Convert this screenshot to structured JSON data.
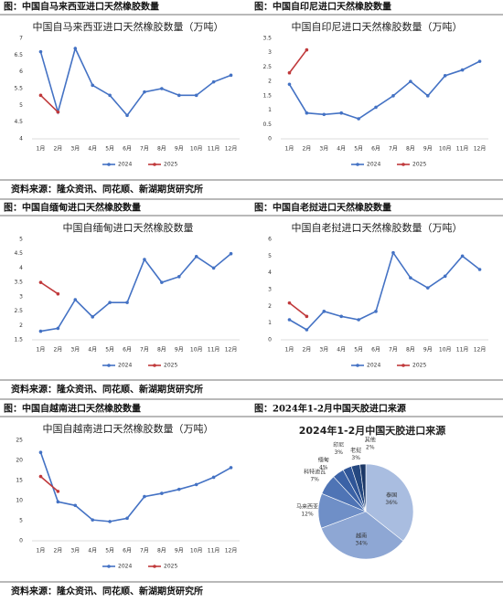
{
  "headers": [
    "图：中国自马来西亚进口天然橡胶数量",
    "图：中国自印尼进口天然橡胶数量",
    "图：中国自缅甸进口天然橡胶数量",
    "图：中国自老挝进口天然橡胶数量",
    "图：中国自越南进口天然橡胶数量",
    "图：2024年1-2月中国天胶进口来源"
  ],
  "sources": [
    "资料来源：隆众资讯、同花顺、新湖期货研究所",
    "资料来源：隆众资讯、同花顺、新湖期货研究所",
    "资料来源：隆众资讯、同花顺、新湖期货研究所"
  ],
  "chart_data": [
    {
      "type": "line",
      "title": "中国自马来西亚进口天然橡胶数量（万吨）",
      "categories": [
        "1月",
        "2月",
        "3月",
        "4月",
        "5月",
        "6月",
        "7月",
        "8月",
        "9月",
        "10月",
        "11月",
        "12月"
      ],
      "series": [
        {
          "name": "2024",
          "color": "#4472c4",
          "values": [
            6.6,
            4.8,
            6.7,
            5.6,
            5.3,
            4.7,
            5.4,
            5.5,
            5.3,
            5.3,
            5.7,
            5.9
          ]
        },
        {
          "name": "2025",
          "color": "#c0393b",
          "values": [
            5.3,
            4.8,
            null,
            null,
            null,
            null,
            null,
            null,
            null,
            null,
            null,
            null
          ]
        }
      ],
      "ylim": [
        4,
        7
      ],
      "yticks": [
        4,
        4.5,
        5,
        5.5,
        6,
        6.5,
        7
      ]
    },
    {
      "type": "line",
      "title": "中国自印尼进口天然橡胶数量（万吨）",
      "categories": [
        "1月",
        "2月",
        "3月",
        "4月",
        "5月",
        "6月",
        "7月",
        "8月",
        "9月",
        "10月",
        "11月",
        "12月"
      ],
      "series": [
        {
          "name": "2024",
          "color": "#4472c4",
          "values": [
            1.9,
            0.9,
            0.85,
            0.9,
            0.7,
            1.1,
            1.5,
            2.0,
            1.5,
            2.2,
            2.4,
            2.7
          ]
        },
        {
          "name": "2025",
          "color": "#c0393b",
          "values": [
            2.3,
            3.1,
            null,
            null,
            null,
            null,
            null,
            null,
            null,
            null,
            null,
            null
          ]
        }
      ],
      "ylim": [
        0,
        3.5
      ],
      "yticks": [
        0,
        0.5,
        1,
        1.5,
        2,
        2.5,
        3,
        3.5
      ]
    },
    {
      "type": "line",
      "title": "中国自缅甸进口天然橡胶数量",
      "categories": [
        "1月",
        "2月",
        "3月",
        "4月",
        "5月",
        "6月",
        "7月",
        "8月",
        "9月",
        "10月",
        "11月",
        "12月"
      ],
      "series": [
        {
          "name": "2024",
          "color": "#4472c4",
          "values": [
            1.8,
            1.9,
            2.9,
            2.3,
            2.8,
            2.8,
            4.3,
            3.5,
            3.7,
            4.4,
            4.0,
            4.5
          ]
        },
        {
          "name": "2025",
          "color": "#c0393b",
          "values": [
            3.5,
            3.1,
            null,
            null,
            null,
            null,
            null,
            null,
            null,
            null,
            null,
            null
          ]
        }
      ],
      "ylim": [
        1.5,
        5
      ],
      "yticks": [
        1.5,
        2,
        2.5,
        3,
        3.5,
        4,
        4.5,
        5
      ]
    },
    {
      "type": "line",
      "title": "中国自老挝进口天然橡胶数量（万吨）",
      "categories": [
        "1月",
        "2月",
        "3月",
        "4月",
        "5月",
        "6月",
        "7月",
        "8月",
        "9月",
        "10月",
        "11月",
        "12月"
      ],
      "series": [
        {
          "name": "2024",
          "color": "#4472c4",
          "values": [
            1.2,
            0.6,
            1.7,
            1.4,
            1.2,
            1.7,
            5.2,
            3.7,
            3.1,
            3.8,
            5.0,
            4.2
          ]
        },
        {
          "name": "2025",
          "color": "#c0393b",
          "values": [
            2.2,
            1.4,
            null,
            null,
            null,
            null,
            null,
            null,
            null,
            null,
            null,
            null
          ]
        }
      ],
      "ylim": [
        0,
        6
      ],
      "yticks": [
        0,
        1,
        2,
        3,
        4,
        5,
        6
      ]
    },
    {
      "type": "line",
      "title": "中国自越南进口天然橡胶数量（万吨）",
      "categories": [
        "1月",
        "2月",
        "3月",
        "4月",
        "5月",
        "6月",
        "7月",
        "8月",
        "9月",
        "10月",
        "11月",
        "12月"
      ],
      "series": [
        {
          "name": "2024",
          "color": "#4472c4",
          "values": [
            22,
            9.7,
            8.8,
            5.2,
            4.8,
            5.6,
            11,
            11.8,
            12.8,
            14,
            15.8,
            18.2
          ]
        },
        {
          "name": "2025",
          "color": "#c0393b",
          "values": [
            16,
            12.3,
            null,
            null,
            null,
            null,
            null,
            null,
            null,
            null,
            null,
            null
          ]
        }
      ],
      "ylim": [
        0,
        25
      ],
      "yticks": [
        0,
        5,
        10,
        15,
        20,
        25
      ]
    },
    {
      "type": "pie",
      "title": "2024年1-2月中国天胶进口来源",
      "categories": [
        "泰国",
        "越南",
        "马来西亚",
        "科特迪瓦",
        "缅甸",
        "印尼",
        "老挝",
        "其他"
      ],
      "values": [
        36,
        34,
        12,
        7,
        4,
        3,
        3,
        2
      ],
      "value_labels": [
        "36%",
        "34%",
        "12%",
        "7%",
        "4%",
        "3%",
        "3%",
        "2%"
      ],
      "colors": [
        "#a9bde0",
        "#8ea7d4",
        "#6f8fc7",
        "#4f74b5",
        "#3b62a6",
        "#2f5597",
        "#24477f",
        "#1b3766"
      ]
    }
  ]
}
